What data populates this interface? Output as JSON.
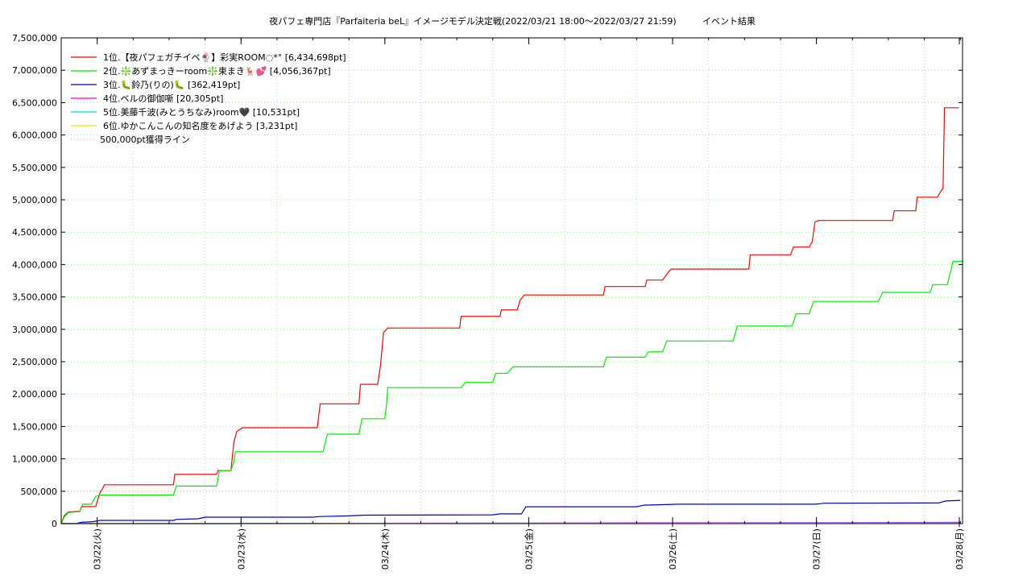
{
  "chart_data": {
    "type": "line",
    "title": "夜パフェ専門店『Parfaiteria beL』イメージモデル決定戦(2022/03/21 18:00～2022/03/27 21:59)",
    "subtitle": "イベント結果",
    "xlabel": "",
    "ylabel": "",
    "xlim": [
      0,
      6.2
    ],
    "ylim": [
      0,
      7500000
    ],
    "grid": true,
    "legend_position": "top-left",
    "x_tick_labels": [
      "03/22(火)",
      "03/23(水)",
      "03/24(木)",
      "03/25(金)",
      "03/26(土)",
      "03/27(日)",
      "03/28(月)"
    ],
    "x_tick_positions": [
      0.25,
      1.25,
      2.25,
      3.25,
      4.25,
      5.25,
      6.25
    ],
    "y_ticks": [
      0,
      500000,
      1000000,
      1500000,
      2000000,
      2500000,
      3000000,
      3500000,
      4000000,
      4500000,
      5000000,
      5500000,
      6000000,
      6500000,
      7000000,
      7500000
    ],
    "y_tick_labels": [
      "0",
      "500,000",
      "1,000,000",
      "1,500,000",
      "2,000,000",
      "2,500,000",
      "3,000,000",
      "3,500,000",
      "4,000,000",
      "4,500,000",
      "5,000,000",
      "5,500,000",
      "6,000,000",
      "6,500,000",
      "7,000,000",
      "7,500,000"
    ],
    "series": [
      {
        "name": "1位.【夜パフェガチイベ🍨】彩実ROOM◌*° [6,434,698pt]",
        "color": "#ff0000",
        "points": [
          [
            0,
            0
          ],
          [
            0.02,
            120000
          ],
          [
            0.05,
            180000
          ],
          [
            0.13,
            190000
          ],
          [
            0.14,
            260000
          ],
          [
            0.24,
            265000
          ],
          [
            0.27,
            480000
          ],
          [
            0.29,
            550000
          ],
          [
            0.3,
            600000
          ],
          [
            0.78,
            600000
          ],
          [
            0.79,
            760000
          ],
          [
            1.08,
            760000
          ],
          [
            1.09,
            820000
          ],
          [
            1.18,
            820000
          ],
          [
            1.2,
            1250000
          ],
          [
            1.22,
            1420000
          ],
          [
            1.26,
            1480000
          ],
          [
            1.78,
            1480000
          ],
          [
            1.8,
            1850000
          ],
          [
            2.07,
            1850000
          ],
          [
            2.08,
            2150000
          ],
          [
            2.2,
            2150000
          ],
          [
            2.22,
            2450000
          ],
          [
            2.24,
            2950000
          ],
          [
            2.27,
            3020000
          ],
          [
            2.77,
            3020000
          ],
          [
            2.78,
            3200000
          ],
          [
            3.05,
            3200000
          ],
          [
            3.06,
            3300000
          ],
          [
            3.17,
            3300000
          ],
          [
            3.19,
            3450000
          ],
          [
            3.22,
            3530000
          ],
          [
            3.77,
            3530000
          ],
          [
            3.78,
            3660000
          ],
          [
            4.06,
            3660000
          ],
          [
            4.07,
            3760000
          ],
          [
            4.18,
            3760000
          ],
          [
            4.22,
            3880000
          ],
          [
            4.24,
            3930000
          ],
          [
            4.78,
            3930000
          ],
          [
            4.79,
            4150000
          ],
          [
            5.07,
            4150000
          ],
          [
            5.09,
            4270000
          ],
          [
            5.2,
            4270000
          ],
          [
            5.22,
            4350000
          ],
          [
            5.24,
            4660000
          ],
          [
            5.27,
            4680000
          ],
          [
            5.78,
            4680000
          ],
          [
            5.79,
            4830000
          ],
          [
            5.94,
            4830000
          ],
          [
            5.95,
            5040000
          ],
          [
            6.09,
            5040000
          ],
          [
            6.12,
            5150000
          ],
          [
            6.13,
            5170000
          ],
          [
            6.14,
            6420000
          ],
          [
            6.24,
            6420000
          ]
        ]
      },
      {
        "name": "2位.❇️あずまっきーroom❇️束まき🦌💕 [4,056,367pt]",
        "color": "#00ee00",
        "points": [
          [
            0,
            0
          ],
          [
            0.02,
            100000
          ],
          [
            0.05,
            170000
          ],
          [
            0.13,
            185000
          ],
          [
            0.15,
            300000
          ],
          [
            0.21,
            300000
          ],
          [
            0.24,
            420000
          ],
          [
            0.27,
            440000
          ],
          [
            0.78,
            440000
          ],
          [
            0.8,
            580000
          ],
          [
            1.08,
            580000
          ],
          [
            1.1,
            820000
          ],
          [
            1.18,
            820000
          ],
          [
            1.2,
            950000
          ],
          [
            1.21,
            1110000
          ],
          [
            1.82,
            1110000
          ],
          [
            1.85,
            1380000
          ],
          [
            2.07,
            1380000
          ],
          [
            2.09,
            1620000
          ],
          [
            2.25,
            1620000
          ],
          [
            2.26,
            1800000
          ],
          [
            2.27,
            2100000
          ],
          [
            2.78,
            2100000
          ],
          [
            2.81,
            2180000
          ],
          [
            3.0,
            2180000
          ],
          [
            3.02,
            2320000
          ],
          [
            3.1,
            2320000
          ],
          [
            3.14,
            2420000
          ],
          [
            3.77,
            2420000
          ],
          [
            3.79,
            2570000
          ],
          [
            4.06,
            2570000
          ],
          [
            4.08,
            2650000
          ],
          [
            4.18,
            2650000
          ],
          [
            4.21,
            2820000
          ],
          [
            4.67,
            2820000
          ],
          [
            4.7,
            3050000
          ],
          [
            5.08,
            3050000
          ],
          [
            5.11,
            3240000
          ],
          [
            5.2,
            3240000
          ],
          [
            5.23,
            3430000
          ],
          [
            5.68,
            3430000
          ],
          [
            5.71,
            3570000
          ],
          [
            6.04,
            3570000
          ],
          [
            6.06,
            3690000
          ],
          [
            6.16,
            3690000
          ],
          [
            6.2,
            4050000
          ],
          [
            6.27,
            4050000
          ]
        ]
      },
      {
        "name": "3位.🐛鈴乃(りの)🐛 [362,419pt]",
        "color": "#0000cc",
        "points": [
          [
            0,
            0
          ],
          [
            0.1,
            0
          ],
          [
            0.14,
            20000
          ],
          [
            0.22,
            30000
          ],
          [
            0.27,
            50000
          ],
          [
            0.78,
            50000
          ],
          [
            0.8,
            65000
          ],
          [
            0.95,
            75000
          ],
          [
            1.0,
            100000
          ],
          [
            1.75,
            100000
          ],
          [
            1.8,
            110000
          ],
          [
            2.0,
            120000
          ],
          [
            2.1,
            130000
          ],
          [
            3.0,
            135000
          ],
          [
            3.05,
            150000
          ],
          [
            3.2,
            150000
          ],
          [
            3.23,
            260000
          ],
          [
            4.0,
            260000
          ],
          [
            4.05,
            285000
          ],
          [
            4.3,
            300000
          ],
          [
            5.25,
            300000
          ],
          [
            5.3,
            315000
          ],
          [
            6.1,
            320000
          ],
          [
            6.15,
            350000
          ],
          [
            6.25,
            360000
          ]
        ]
      },
      {
        "name": "4位.ベルの御伽噺 [20,305pt]",
        "color": "#ee00ee",
        "points": [
          [
            0,
            0
          ],
          [
            1.2,
            0
          ],
          [
            1.25,
            5000
          ],
          [
            3.0,
            8000
          ],
          [
            4.0,
            12000
          ],
          [
            5.0,
            14000
          ],
          [
            6.0,
            18000
          ],
          [
            6.25,
            20000
          ]
        ]
      },
      {
        "name": "5位.美藤千波(みとうちなみ)room🖤 [10,531pt]",
        "color": "#00dddd",
        "points": [
          [
            0,
            0
          ],
          [
            1.2,
            0
          ],
          [
            1.3,
            3000
          ],
          [
            3.0,
            6000
          ],
          [
            5.0,
            8000
          ],
          [
            6.25,
            10500
          ]
        ]
      },
      {
        "name": "6位.ゆかこんこんの知名度をあげよう [3,231pt]",
        "color": "#eeee00",
        "points": [
          [
            0,
            0
          ],
          [
            2.0,
            1000
          ],
          [
            4.0,
            2000
          ],
          [
            6.25,
            3200
          ]
        ]
      }
    ],
    "reference_lines": [
      {
        "name": "500,000pt獲得ライン",
        "value": 500000,
        "color": "#ff9999"
      }
    ]
  }
}
